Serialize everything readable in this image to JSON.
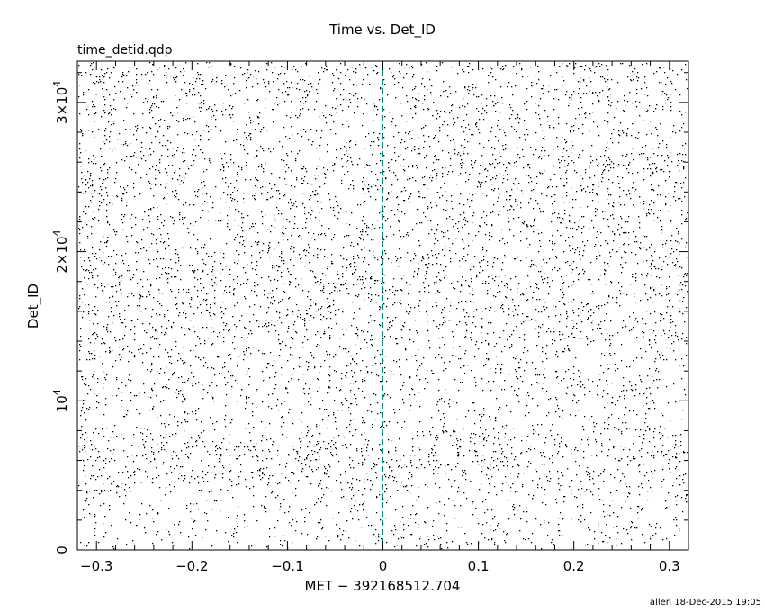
{
  "chart_data": {
    "type": "scatter",
    "title": "Time vs. Det_ID",
    "subtitle": "time_detid.qdp",
    "xlabel": "MET − 392168512.704",
    "ylabel": "Det_ID",
    "xlim": [
      -0.32,
      0.32
    ],
    "ylim": [
      0,
      32768
    ],
    "x_ticks": [
      -0.3,
      -0.2,
      -0.1,
      0,
      0.1,
      0.2,
      0.3
    ],
    "x_tick_labels": [
      "−0.3",
      "−0.2",
      "−0.1",
      "0",
      "0.1",
      "0.2",
      "0.3"
    ],
    "y_ticks": [
      {
        "value": 0,
        "label": "0",
        "sup": ""
      },
      {
        "value": 10000,
        "label": "10",
        "sup": "4"
      },
      {
        "value": 20000,
        "label": "2×10",
        "sup": "4"
      },
      {
        "value": 30000,
        "label": "3×10",
        "sup": "4"
      }
    ],
    "reference_line": {
      "x": 0,
      "color": "#008b8b",
      "style": "dashed"
    },
    "point_color": "#000000",
    "point_count_estimate": 7000,
    "density_profile": {
      "bands_y": [
        [
          0,
          0.3
        ],
        [
          1500,
          0.55
        ],
        [
          2500,
          0.45
        ],
        [
          4000,
          0.6
        ],
        [
          5000,
          0.9
        ],
        [
          6500,
          0.95
        ],
        [
          7800,
          0.75
        ],
        [
          8500,
          0.5
        ],
        [
          10000,
          0.55
        ],
        [
          11500,
          0.7
        ],
        [
          13000,
          0.6
        ],
        [
          14500,
          0.8
        ],
        [
          16000,
          0.9
        ],
        [
          17500,
          1.0
        ],
        [
          19000,
          0.95
        ],
        [
          20500,
          0.85
        ],
        [
          21500,
          0.7
        ],
        [
          22500,
          0.75
        ],
        [
          24000,
          0.9
        ],
        [
          25000,
          1.0
        ],
        [
          26000,
          0.95
        ],
        [
          27500,
          0.6
        ],
        [
          28500,
          0.7
        ],
        [
          30000,
          0.8
        ],
        [
          31000,
          0.7
        ],
        [
          32768,
          0.8
        ]
      ],
      "note": "approximate relative density of events along Det_ID"
    },
    "grid": false
  },
  "footer": {
    "credit": "allen 18-Dec-2015 19:05"
  }
}
